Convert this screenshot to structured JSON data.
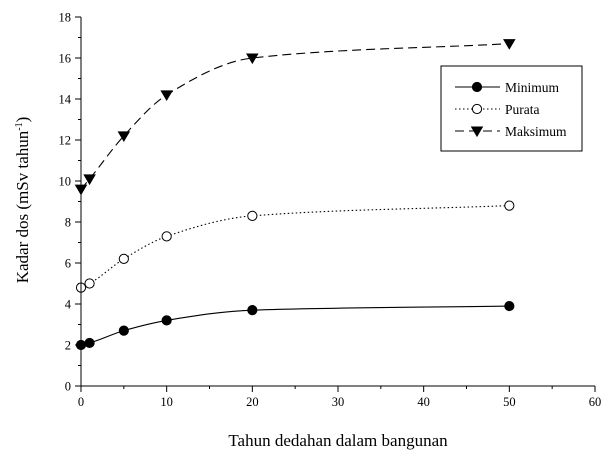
{
  "chart_data": {
    "type": "line",
    "xlabel": "Tahun dedahan dalam bangunan",
    "ylabel_main": "Kadar dos (mSv tahun",
    "ylabel_sup": "-1",
    "ylabel_close": ")",
    "xlim": [
      0,
      60
    ],
    "ylim": [
      0,
      18
    ],
    "xticks": [
      "0",
      "10",
      "20",
      "30",
      "40",
      "50",
      "60"
    ],
    "yticks": [
      "0",
      "2",
      "4",
      "6",
      "8",
      "10",
      "12",
      "14",
      "16",
      "18"
    ],
    "grid": false,
    "legend_position": "top-right",
    "series": [
      {
        "name": "Minimum",
        "marker": "filled-circle",
        "line_style": "solid",
        "x": [
          0,
          1,
          5,
          10,
          20,
          50
        ],
        "values": [
          2.0,
          2.1,
          2.7,
          3.2,
          3.7,
          3.9
        ]
      },
      {
        "name": "Purata",
        "marker": "open-circle",
        "line_style": "dotted",
        "x": [
          0,
          1,
          5,
          10,
          20,
          50
        ],
        "values": [
          4.8,
          5.0,
          6.2,
          7.3,
          8.3,
          8.8
        ]
      },
      {
        "name": "Maksimum",
        "marker": "filled-triangle-down",
        "line_style": "dashed",
        "x": [
          0,
          1,
          5,
          10,
          20,
          50
        ],
        "values": [
          9.6,
          10.1,
          12.2,
          14.2,
          16.0,
          16.7
        ]
      }
    ]
  }
}
